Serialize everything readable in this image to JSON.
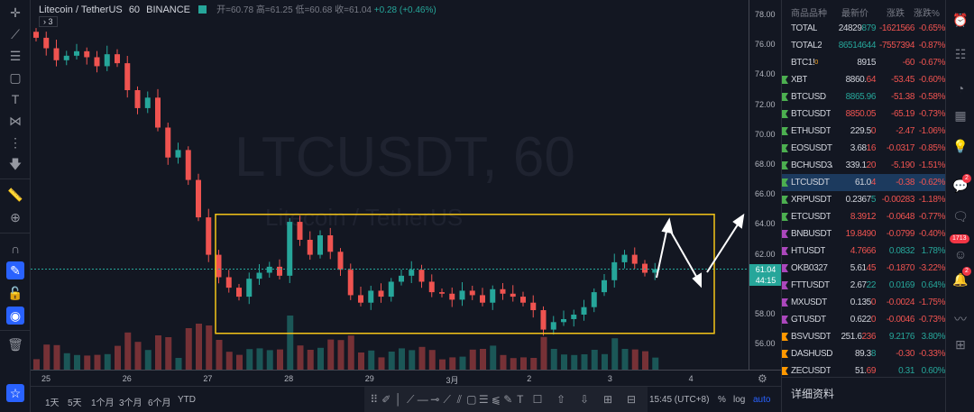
{
  "header": {
    "symbol": "Litecoin / TetherUS",
    "interval": "60",
    "exchange": "BINANCE",
    "open": "开=60.78",
    "high": "高=61.25",
    "low": "低=60.68",
    "close": "收=61.04",
    "change": "+0.28 (+0.46%)",
    "collapse": "› 3"
  },
  "watermark": {
    "big": "LTCUSDT, 60",
    "small": "Litecoin / TetherUS"
  },
  "price_axis": {
    "labels": [
      "78.00",
      "76.00",
      "74.00",
      "72.00",
      "70.00",
      "68.00",
      "66.00",
      "64.00",
      "62.00",
      "58.00",
      "56.00"
    ],
    "current_price": "61.04",
    "countdown": "44:15"
  },
  "time_axis": {
    "labels": [
      "25",
      "26",
      "27",
      "28",
      "29",
      "3月",
      "2",
      "3",
      "4"
    ]
  },
  "chart_data": {
    "type": "candlestick",
    "interval": "3h (approx.)",
    "ylim": [
      55,
      79
    ],
    "current": 61.04,
    "closes": [
      76.5,
      75.8,
      75,
      75.3,
      75.6,
      75.2,
      74.6,
      75.4,
      74.8,
      73,
      71.8,
      72.5,
      70.5,
      68.5,
      69,
      67,
      64.5,
      62,
      60.5,
      59.8,
      59.2,
      60.4,
      60.8,
      61.2,
      60.6,
      64.2,
      63,
      62,
      63.3,
      62.2,
      61,
      59.3,
      58.8,
      59.6,
      59.2,
      60.2,
      60.6,
      61,
      60.2,
      59.5,
      59.4,
      59,
      59.6,
      59.3,
      58.8,
      59.7,
      59.4,
      59.2,
      58.8,
      58.3,
      57,
      57.5,
      57.7,
      58,
      58.5,
      59.5,
      60.3,
      61.5,
      62,
      61.4,
      60.8,
      61.04
    ],
    "range_box": [
      56.75,
      64.7
    ],
    "colors": {
      "up": "#26a69a",
      "down": "#ef5350",
      "box": "#f5c518"
    }
  },
  "bottom_toolbar": {
    "ranges": [
      "1天",
      "5天",
      "1个月",
      "3个月",
      "6个月",
      "YTD"
    ],
    "time": "15:45 (UTC+8)",
    "percent": "%",
    "log": "log",
    "auto": "auto"
  },
  "watchlist": {
    "headers": [
      "商品品种",
      "最新价",
      "涨跌",
      "涨跌%"
    ],
    "rows": [
      {
        "sym": "TOTAL",
        "p1": "24829",
        "p2": "879",
        "p2c": "up",
        "ch": "-1621566",
        "pc": "-0.65%",
        "dir": "dn",
        "mk": ""
      },
      {
        "sym": "TOTAL2",
        "p1": "",
        "p2": "86514644",
        "p2c": "up",
        "ch": "-7557394",
        "pc": "-0.87%",
        "dir": "dn",
        "mk": ""
      },
      {
        "sym": "BTC1!",
        "sup": "0",
        "p1": "8915",
        "p2": "",
        "p2c": "",
        "ch": "-60",
        "pc": "-0.67%",
        "dir": "dn",
        "mk": ""
      },
      {
        "sym": "XBT",
        "p1": "8860.",
        "p2": "64",
        "p2c": "dn",
        "ch": "-53.45",
        "pc": "-0.60%",
        "dir": "dn",
        "mk": "#4caf50"
      },
      {
        "sym": "BTCUSD",
        "p1": "",
        "p2": "8865.96",
        "p2c": "up",
        "ch": "-51.38",
        "pc": "-0.58%",
        "dir": "dn",
        "mk": "#4caf50"
      },
      {
        "sym": "BTCUSDT",
        "p1": "",
        "p2": "8850.05",
        "p2c": "dn",
        "ch": "-65.19",
        "pc": "-0.73%",
        "dir": "dn",
        "mk": "#4caf50"
      },
      {
        "sym": "ETHUSDT",
        "p1": "229.5",
        "p2": "0",
        "p2c": "dn",
        "ch": "-2.47",
        "pc": "-1.06%",
        "dir": "dn",
        "mk": "#4caf50"
      },
      {
        "sym": "EOSUSDT",
        "p1": "3.68",
        "p2": "16",
        "p2c": "dn",
        "ch": "-0.0317",
        "pc": "-0.85%",
        "dir": "dn",
        "mk": "#4caf50"
      },
      {
        "sym": "BCHUSD3/",
        "p1": "339.1",
        "p2": "20",
        "p2c": "dn",
        "ch": "-5.190",
        "pc": "-1.51%",
        "dir": "dn",
        "mk": "#4caf50"
      },
      {
        "sym": "LTCUSDT",
        "p1": "61.0",
        "p2": "4",
        "p2c": "dn",
        "ch": "-0.38",
        "pc": "-0.62%",
        "dir": "dn",
        "mk": "#4caf50",
        "sel": true
      },
      {
        "sym": "XRPUSDT",
        "p1": "0.2367",
        "p2": "5",
        "p2c": "up",
        "ch": "-0.00283",
        "pc": "-1.18%",
        "dir": "dn",
        "mk": "#4caf50"
      },
      {
        "sym": "ETCUSDT",
        "p1": "",
        "p2": "8.3912",
        "p2c": "dn",
        "ch": "-0.0648",
        "pc": "-0.77%",
        "dir": "dn",
        "mk": "#4caf50"
      },
      {
        "sym": "BNBUSDT",
        "p1": "",
        "p2": "19.8490",
        "p2c": "dn",
        "ch": "-0.0799",
        "pc": "-0.40%",
        "dir": "dn",
        "mk": "#ab47bc"
      },
      {
        "sym": "HTUSDT",
        "p1": "",
        "p2": "4.7666",
        "p2c": "dn",
        "ch": "0.0832",
        "pc": "1.78%",
        "dir": "up",
        "mk": "#ab47bc"
      },
      {
        "sym": "OKB0327",
        "p1": "5.61",
        "p2": "45",
        "p2c": "dn",
        "ch": "-0.1870",
        "pc": "-3.22%",
        "dir": "dn",
        "mk": "#ab47bc"
      },
      {
        "sym": "FTTUSDT",
        "p1": "2.67",
        "p2": "22",
        "p2c": "up",
        "ch": "0.0169",
        "pc": "0.64%",
        "dir": "up",
        "mk": "#ab47bc"
      },
      {
        "sym": "MXUSDT",
        "p1": "0.135",
        "p2": "0",
        "p2c": "dn",
        "ch": "-0.0024",
        "pc": "-1.75%",
        "dir": "dn",
        "mk": "#ab47bc"
      },
      {
        "sym": "GTUSDT",
        "p1": "0.622",
        "p2": "0",
        "p2c": "dn",
        "ch": "-0.0046",
        "pc": "-0.73%",
        "dir": "dn",
        "mk": "#ab47bc"
      },
      {
        "sym": "BSVUSDT",
        "p1": "251.6",
        "p2": "236",
        "p2c": "dn",
        "ch": "9.2176",
        "pc": "3.80%",
        "dir": "up",
        "mk": "#ff9800"
      },
      {
        "sym": "DASHUSD'",
        "p1": "89.3",
        "p2": "8",
        "p2c": "up",
        "ch": "-0.30",
        "pc": "-0.33%",
        "dir": "dn",
        "mk": "#ff9800"
      },
      {
        "sym": "ZECUSDT",
        "p1": "51.",
        "p2": "69",
        "p2c": "dn",
        "ch": "0.31",
        "pc": "0.60%",
        "dir": "up",
        "mk": "#ff9800"
      }
    ],
    "details": "详细资料"
  },
  "right_bar": {
    "badges": [
      "2",
      "1713",
      "2"
    ]
  }
}
